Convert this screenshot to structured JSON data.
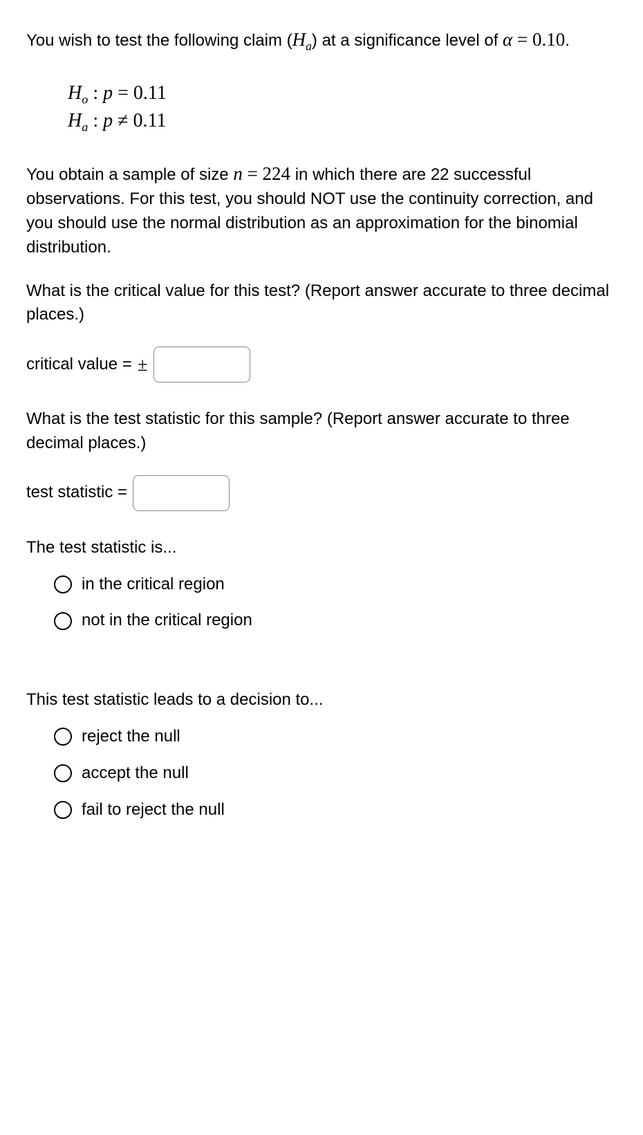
{
  "intro": {
    "l1a": "You wish to test the following claim (",
    "l1b": ") at a significance level of ",
    "alpha_sym": "α",
    "eq": " = ",
    "alpha_val": "0.10",
    "period": ".",
    "Ha_H": "H",
    "Ha_sub": "a"
  },
  "hyp": {
    "H": "H",
    "o": "o",
    "a": "a",
    "colon": " : ",
    "p": "p",
    "eq": " = ",
    "neq": " ≠ ",
    "val": "0.11"
  },
  "sample": {
    "l1": "You obtain a sample of size ",
    "n": "n",
    "eq": " = ",
    "nval": "224",
    "l2": " in which there are 22 successful observations. For this test, you should NOT use the continuity correction, and you should use the normal distribution as an approximation for the binomial distribution."
  },
  "crit": {
    "q": "What is the critical value for this test? (Report answer accurate to three decimal places.)",
    "label": "critical value = ",
    "pm": "±"
  },
  "tstat": {
    "q": "What is the test statistic for this sample? (Report answer accurate to three decimal places.)",
    "label": "test statistic = "
  },
  "region": {
    "lead": "The test statistic is...",
    "opt1": "in the critical region",
    "opt2": "not in the critical region"
  },
  "decision": {
    "lead": "This test statistic leads to a decision to...",
    "opt1": "reject the null",
    "opt2": "accept the null",
    "opt3": "fail to reject the null"
  }
}
